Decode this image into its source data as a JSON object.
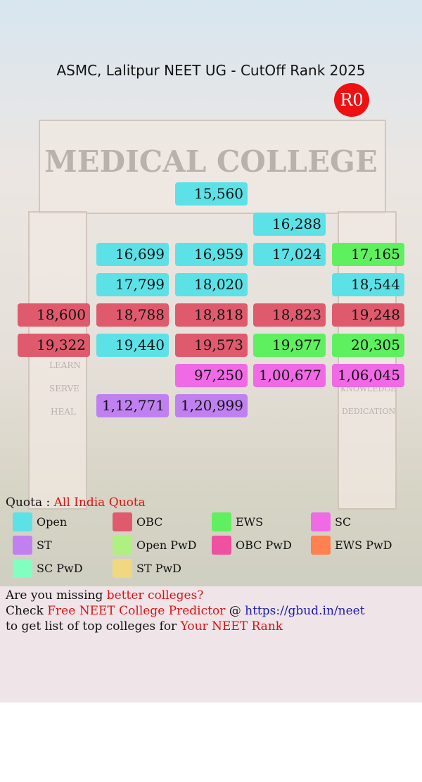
{
  "header": {
    "title": "ASMC, Lalitpur NEET UG - CutOff Rank 2025",
    "round": "R0"
  },
  "background": {
    "sign": "MEDICAL COLLEGE",
    "left_words": [
      "LEARN",
      "SERVE",
      "HEAL"
    ],
    "right_words": [
      "KNOWLEDGE",
      "DEDICATION"
    ]
  },
  "grid": {
    "rows": [
      [
        null,
        null,
        {
          "text": "15,560",
          "color": "#5ce1e6"
        },
        null,
        null
      ],
      [
        null,
        null,
        null,
        {
          "text": "16,288",
          "color": "#5ce1e6"
        },
        null
      ],
      [
        null,
        {
          "text": "16,699",
          "color": "#5ce1e6"
        },
        {
          "text": "16,959",
          "color": "#5ce1e6"
        },
        {
          "text": "17,024",
          "color": "#5ce1e6"
        },
        {
          "text": "17,165",
          "color": "#5ef05e"
        }
      ],
      [
        null,
        {
          "text": "17,799",
          "color": "#5ce1e6"
        },
        {
          "text": "18,020",
          "color": "#5ce1e6"
        },
        null,
        {
          "text": "18,544",
          "color": "#5ce1e6"
        }
      ],
      [
        {
          "text": "18,600",
          "color": "#e05a6e"
        },
        {
          "text": "18,788",
          "color": "#e05a6e"
        },
        {
          "text": "18,818",
          "color": "#e05a6e"
        },
        {
          "text": "18,823",
          "color": "#e05a6e"
        },
        {
          "text": "19,248",
          "color": "#e05a6e"
        }
      ],
      [
        {
          "text": "19,322",
          "color": "#e05a6e"
        },
        {
          "text": "19,440",
          "color": "#5ce1e6"
        },
        {
          "text": "19,573",
          "color": "#e05a6e"
        },
        {
          "text": "19,977",
          "color": "#5ef05e"
        },
        {
          "text": "20,305",
          "color": "#5ef05e"
        }
      ],
      [
        null,
        null,
        {
          "text": "97,250",
          "color": "#f06ae6"
        },
        {
          "text": "1,00,677",
          "color": "#f06ae6"
        },
        {
          "text": "1,06,045",
          "color": "#f06ae6"
        }
      ],
      [
        null,
        {
          "text": "1,12,771",
          "color": "#c080f0"
        },
        {
          "text": "1,20,999",
          "color": "#c080f0"
        },
        null,
        null
      ]
    ]
  },
  "quota": {
    "label": "Quota :",
    "value": "All India Quota"
  },
  "legend": [
    {
      "name": "Open",
      "color": "#5ce1e6"
    },
    {
      "name": "OBC",
      "color": "#e05a6e"
    },
    {
      "name": "EWS",
      "color": "#5ef05e"
    },
    {
      "name": "SC",
      "color": "#f06ae6"
    },
    {
      "name": "ST",
      "color": "#c080f0"
    },
    {
      "name": "Open PwD",
      "color": "#b0f080"
    },
    {
      "name": "OBC PwD",
      "color": "#f050a0"
    },
    {
      "name": "EWS PwD",
      "color": "#ff8050"
    },
    {
      "name": "SC PwD",
      "color": "#80ffc0"
    },
    {
      "name": "ST PwD",
      "color": "#f0d880"
    }
  ],
  "promo": {
    "lines": [
      [
        {
          "text": "Are you missing ",
          "color": "#111111"
        },
        {
          "text": "better colleges?",
          "color": "#e01010"
        }
      ],
      [
        {
          "text": "Check ",
          "color": "#111111"
        },
        {
          "text": "Free NEET College Predictor",
          "color": "#e01010"
        },
        {
          "text": " @ ",
          "color": "#111111"
        },
        {
          "text": "https://gbud.in/neet",
          "color": "#1a1ab0"
        }
      ],
      [
        {
          "text": "to get list of top colleges for ",
          "color": "#111111"
        },
        {
          "text": "Your NEET Rank",
          "color": "#e01010"
        }
      ]
    ]
  }
}
